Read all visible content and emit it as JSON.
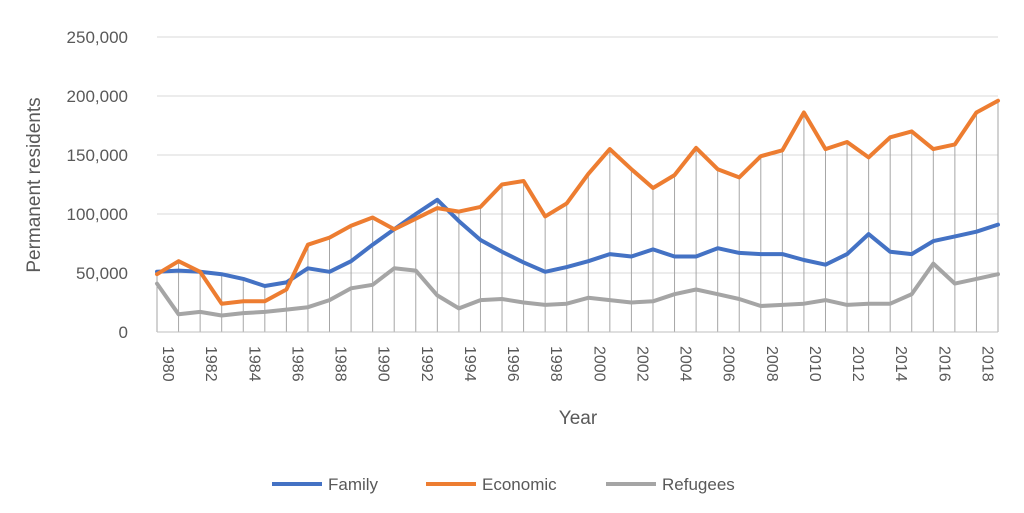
{
  "chart_data": {
    "type": "line",
    "title": "",
    "xlabel": "Year",
    "ylabel": "Permanent residents",
    "ylim": [
      0,
      250000
    ],
    "y_ticks": [
      "0",
      "50,000",
      "100,000",
      "150,000",
      "200,000",
      "250,000"
    ],
    "x_tick_labels": [
      "1980",
      "1982",
      "1984",
      "1986",
      "1988",
      "1990",
      "1992",
      "1994",
      "1996",
      "1998",
      "2000",
      "2002",
      "2004",
      "2006",
      "2008",
      "2010",
      "2012",
      "2014",
      "2016",
      "2018"
    ],
    "grid": "horizontal",
    "drop_lines": true,
    "legend_position": "bottom",
    "x": [
      1980,
      1981,
      1982,
      1983,
      1984,
      1985,
      1986,
      1987,
      1988,
      1989,
      1990,
      1991,
      1992,
      1993,
      1994,
      1995,
      1996,
      1997,
      1998,
      1999,
      2000,
      2001,
      2002,
      2003,
      2004,
      2005,
      2006,
      2007,
      2008,
      2009,
      2010,
      2011,
      2012,
      2013,
      2014,
      2015,
      2016,
      2017,
      2018,
      2019
    ],
    "series": [
      {
        "name": "Family",
        "color": "#4472C4",
        "values": [
          51000,
          52000,
          51000,
          49000,
          45000,
          39000,
          42000,
          54000,
          51000,
          60000,
          74000,
          87000,
          100000,
          112000,
          94000,
          78000,
          68000,
          59000,
          51000,
          55000,
          60000,
          66000,
          64000,
          70000,
          64000,
          64000,
          71000,
          67000,
          66000,
          66000,
          61000,
          57000,
          66000,
          83000,
          68000,
          66000,
          77000,
          81000,
          85000,
          91000
        ]
      },
      {
        "name": "Economic",
        "color": "#ED7D31",
        "values": [
          49000,
          60000,
          51000,
          24000,
          26000,
          26000,
          36000,
          74000,
          80000,
          90000,
          97000,
          87000,
          96000,
          105000,
          102000,
          106000,
          125000,
          128000,
          98000,
          109000,
          134000,
          155000,
          138000,
          122000,
          133000,
          156000,
          138000,
          131000,
          149000,
          154000,
          186000,
          155000,
          161000,
          148000,
          165000,
          170000,
          155000,
          159000,
          186000,
          196000
        ]
      },
      {
        "name": "Refugees",
        "color": "#A5A5A5",
        "values": [
          41000,
          15000,
          17000,
          14000,
          16000,
          17000,
          19000,
          21000,
          27000,
          37000,
          40000,
          54000,
          52000,
          31000,
          20000,
          27000,
          28000,
          25000,
          23000,
          24000,
          29000,
          27000,
          25000,
          26000,
          32000,
          36000,
          32000,
          28000,
          22000,
          23000,
          24000,
          27000,
          23000,
          24000,
          24000,
          32000,
          58000,
          41000,
          45000,
          49000
        ]
      }
    ]
  }
}
